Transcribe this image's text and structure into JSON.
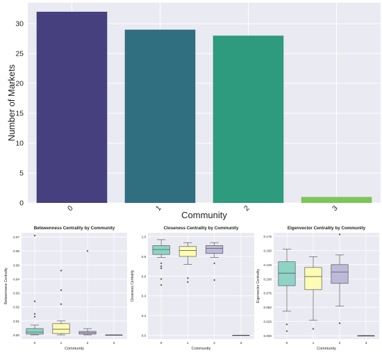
{
  "chart_data": [
    {
      "type": "bar",
      "xlabel": "Community",
      "ylabel": "Number of Markets",
      "categories": [
        "0",
        "1",
        "2",
        "3"
      ],
      "values": [
        32,
        29,
        28,
        1
      ],
      "ylim": [
        0,
        33.5
      ],
      "yticks": [
        0,
        5,
        10,
        15,
        20,
        25,
        30
      ],
      "colors": [
        "#46407e",
        "#2f6f7f",
        "#2e9a7e",
        "#7dc55a"
      ],
      "background": "#eaeaf2",
      "grid": true
    },
    {
      "type": "box",
      "title": "Betweenness Centrality by Community",
      "xlabel": "Community",
      "ylabel": "Betweenness Centrality",
      "categories": [
        "0",
        "1",
        "2",
        "3"
      ],
      "ylim": [
        -0.003,
        0.073
      ],
      "yticks": [
        0.0,
        0.01,
        0.02,
        0.03,
        0.04,
        0.05,
        0.06,
        0.07
      ],
      "tick_decimals": 2,
      "colors": [
        "#8fd3c7",
        "#fcfcb4",
        "#beb9d9",
        "#f47f72"
      ],
      "boxes": [
        {
          "whislo": 0.0,
          "q1": 0.0005,
          "med": 0.002,
          "q3": 0.0045,
          "whishi": 0.007,
          "fliers": [
            0.071,
            0.024,
            0.015,
            0.013
          ]
        },
        {
          "whislo": 0.0,
          "q1": 0.001,
          "med": 0.004,
          "q3": 0.008,
          "whishi": 0.01,
          "fliers": [
            0.046,
            0.032,
            0.022
          ]
        },
        {
          "whislo": 0.0,
          "q1": 0.0005,
          "med": 0.0015,
          "q3": 0.0025,
          "whishi": 0.0045,
          "fliers": [
            0.06
          ]
        },
        {
          "whislo": 0.0,
          "q1": 0.0,
          "med": 0.0,
          "q3": 0.0,
          "whishi": 0.0,
          "fliers": []
        }
      ]
    },
    {
      "type": "box",
      "title": "Closeness Centrality by Community",
      "xlabel": "Community",
      "ylabel": "Closeness Centrality",
      "categories": [
        "0",
        "1",
        "2",
        "3"
      ],
      "ylim": [
        -0.04,
        1.04
      ],
      "yticks": [
        0.0,
        0.2,
        0.4,
        0.6,
        0.8,
        1.0
      ],
      "tick_decimals": 1,
      "colors": [
        "#8fd3c7",
        "#fcfcb4",
        "#beb9d9",
        "#f47f72"
      ],
      "boxes": [
        {
          "whislo": 0.79,
          "q1": 0.82,
          "med": 0.87,
          "q3": 0.91,
          "whishi": 0.97,
          "fliers": [
            0.73,
            0.7,
            0.68,
            0.57,
            0.51
          ]
        },
        {
          "whislo": 0.72,
          "q1": 0.8,
          "med": 0.86,
          "q3": 0.9,
          "whishi": 0.94,
          "fliers": [
            0.58,
            0.54
          ]
        },
        {
          "whislo": 0.79,
          "q1": 0.83,
          "med": 0.88,
          "q3": 0.91,
          "whishi": 0.94,
          "fliers": [
            0.73,
            0.56
          ]
        },
        {
          "whislo": 0.0,
          "q1": 0.0,
          "med": 0.0,
          "q3": 0.0,
          "whishi": 0.0,
          "fliers": []
        }
      ]
    },
    {
      "type": "box",
      "title": "Eigenvector Centrality by Community",
      "xlabel": "Community",
      "ylabel": "Eigenvector Centrality",
      "categories": [
        "0",
        "1",
        "2",
        "3"
      ],
      "ylim": [
        -0.006,
        0.181
      ],
      "yticks": [
        0.0,
        0.025,
        0.05,
        0.075,
        0.1,
        0.125,
        0.15,
        0.175
      ],
      "tick_decimals": 3,
      "colors": [
        "#8fd3c7",
        "#fcfcb4",
        "#beb9d9",
        "#f47f72"
      ],
      "boxes": [
        {
          "whislo": 0.043,
          "q1": 0.088,
          "med": 0.11,
          "q3": 0.13,
          "whishi": 0.152,
          "fliers": [
            0.02,
            0.008
          ]
        },
        {
          "whislo": 0.027,
          "q1": 0.081,
          "med": 0.104,
          "q3": 0.12,
          "whishi": 0.139,
          "fliers": [
            0.012
          ]
        },
        {
          "whislo": 0.052,
          "q1": 0.092,
          "med": 0.112,
          "q3": 0.125,
          "whishi": 0.142,
          "fliers": [
            0.178,
            0.022
          ]
        },
        {
          "whislo": 0.0,
          "q1": 0.0,
          "med": 0.0,
          "q3": 0.0,
          "whishi": 0.0,
          "fliers": []
        }
      ]
    }
  ]
}
